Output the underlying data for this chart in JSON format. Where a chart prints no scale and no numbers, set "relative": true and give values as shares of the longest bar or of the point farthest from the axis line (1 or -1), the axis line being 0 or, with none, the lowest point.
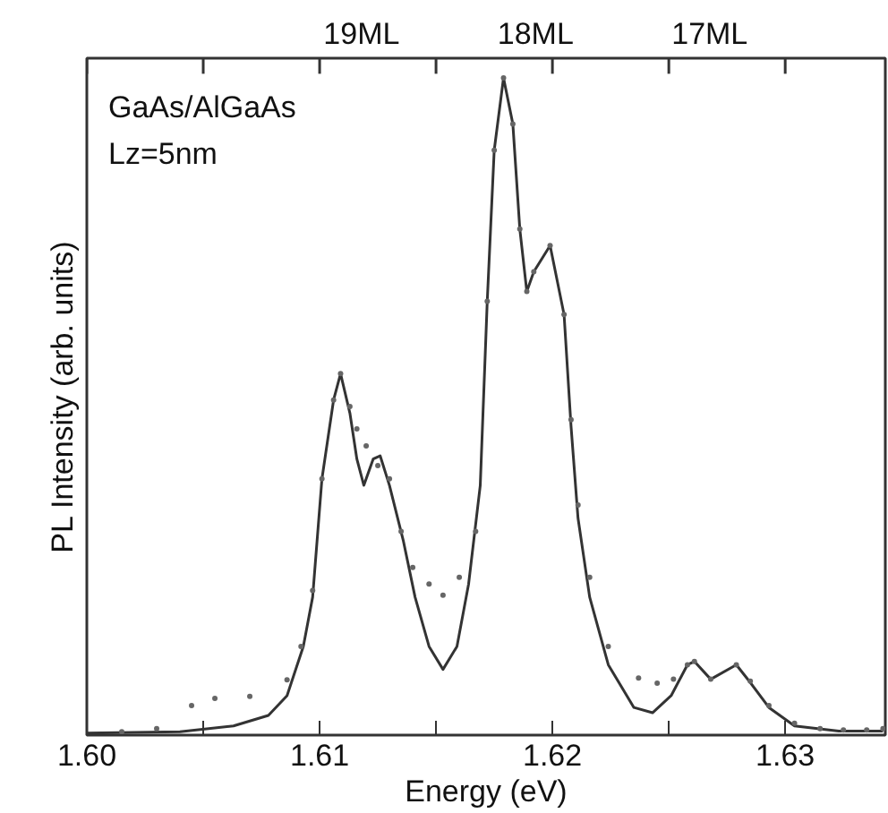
{
  "chart_data": {
    "type": "line",
    "xlabel": "Energy (eV)",
    "ylabel": "PL Intensity (arb. units)",
    "relative": true,
    "xlim": [
      1.6,
      1.6343
    ],
    "xticks": [
      {
        "value": 1.6,
        "label": "1.60"
      },
      {
        "value": 1.605,
        "label": null
      },
      {
        "value": 1.61,
        "label": "1.61"
      },
      {
        "value": 1.615,
        "label": null
      },
      {
        "value": 1.62,
        "label": "1.62"
      },
      {
        "value": 1.625,
        "label": null
      },
      {
        "value": 1.63,
        "label": "1.63"
      }
    ],
    "annotations": [
      "GaAs/AlGaAs",
      "Lz=5nm",
      "19ML",
      "18ML",
      "17ML"
    ],
    "grid": false,
    "series": [
      {
        "color": "#333333",
        "line_style": "solid",
        "x": [
          1.6,
          1.604,
          1.6063,
          1.6078,
          1.6086,
          1.6093,
          1.6097,
          1.6101,
          1.6106,
          1.6109,
          1.6113,
          1.6116,
          1.6119,
          1.6123,
          1.6126,
          1.613,
          1.6136,
          1.6141,
          1.6147,
          1.6153,
          1.6159,
          1.6164,
          1.6169,
          1.6172,
          1.6175,
          1.6179,
          1.6183,
          1.6186,
          1.6189,
          1.6192,
          1.6199,
          1.6205,
          1.6208,
          1.6211,
          1.6216,
          1.6224,
          1.6235,
          1.6243,
          1.6251,
          1.6258,
          1.6261,
          1.6268,
          1.6279,
          1.6285,
          1.6293,
          1.6304,
          1.6323,
          1.6342
        ],
        "values": [
          0.003,
          0.005,
          0.014,
          0.03,
          0.06,
          0.135,
          0.21,
          0.39,
          0.51,
          0.55,
          0.49,
          0.42,
          0.38,
          0.42,
          0.425,
          0.38,
          0.295,
          0.21,
          0.135,
          0.1,
          0.135,
          0.23,
          0.38,
          0.66,
          0.89,
          1.0,
          0.93,
          0.77,
          0.675,
          0.705,
          0.745,
          0.64,
          0.47,
          0.33,
          0.21,
          0.107,
          0.042,
          0.034,
          0.06,
          0.107,
          0.112,
          0.085,
          0.107,
          0.08,
          0.042,
          0.014,
          0.006,
          0.006
        ]
      },
      {
        "type": "scatter",
        "color": "#666666",
        "marker": "circle",
        "x": [
          1.6015,
          1.603,
          1.6045,
          1.6055,
          1.607,
          1.6086,
          1.6092,
          1.6097,
          1.6101,
          1.6106,
          1.6109,
          1.6113,
          1.6116,
          1.612,
          1.6125,
          1.613,
          1.6135,
          1.614,
          1.6147,
          1.6153,
          1.616,
          1.6167,
          1.6172,
          1.6175,
          1.6179,
          1.6183,
          1.6186,
          1.6189,
          1.6192,
          1.6199,
          1.6205,
          1.6208,
          1.6211,
          1.6216,
          1.6224,
          1.6237,
          1.6245,
          1.6252,
          1.6258,
          1.6261,
          1.6268,
          1.6279,
          1.6285,
          1.6293,
          1.6304,
          1.6315,
          1.6325,
          1.6335,
          1.6342
        ],
        "values": [
          0.005,
          0.01,
          0.045,
          0.056,
          0.059,
          0.084,
          0.135,
          0.22,
          0.39,
          0.51,
          0.55,
          0.5,
          0.466,
          0.44,
          0.41,
          0.39,
          0.31,
          0.255,
          0.23,
          0.213,
          0.24,
          0.31,
          0.66,
          0.89,
          1.0,
          0.93,
          0.77,
          0.675,
          0.705,
          0.745,
          0.64,
          0.48,
          0.35,
          0.24,
          0.135,
          0.087,
          0.079,
          0.085,
          0.107,
          0.112,
          0.085,
          0.107,
          0.082,
          0.045,
          0.018,
          0.01,
          0.008,
          0.008,
          0.01
        ]
      }
    ]
  }
}
